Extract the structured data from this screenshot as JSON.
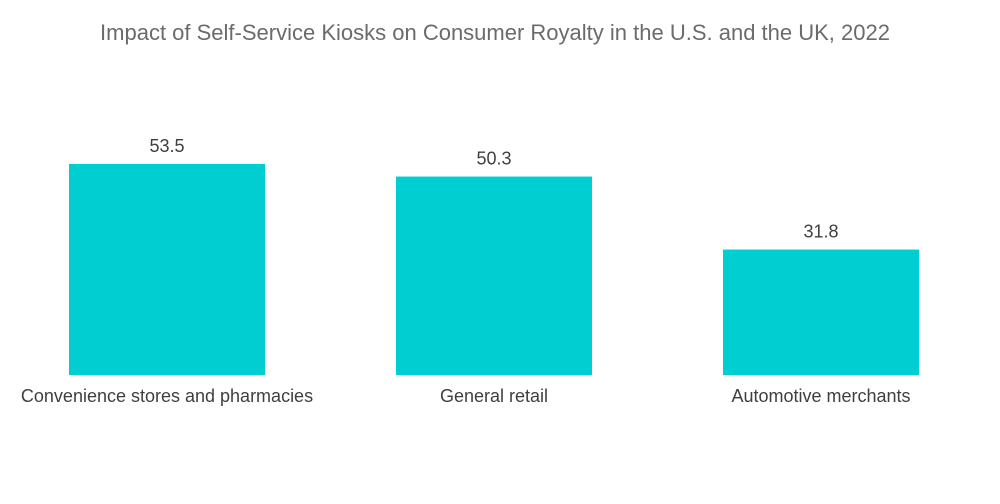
{
  "chart_data": {
    "type": "bar",
    "title": "Impact of Self-Service Kiosks on Consumer Royalty in the U.S. and the UK, 2022",
    "categories": [
      "Convenience stores and pharmacies",
      "General retail",
      "Automotive merchants"
    ],
    "values": [
      53.5,
      50.3,
      31.8
    ],
    "data_labels": [
      "53.5",
      "50.3",
      "31.8"
    ],
    "xlabel": "",
    "ylabel": "",
    "ylim": [
      0,
      60
    ],
    "grid": false,
    "legend": "none",
    "bar_color": "#00CED1"
  }
}
